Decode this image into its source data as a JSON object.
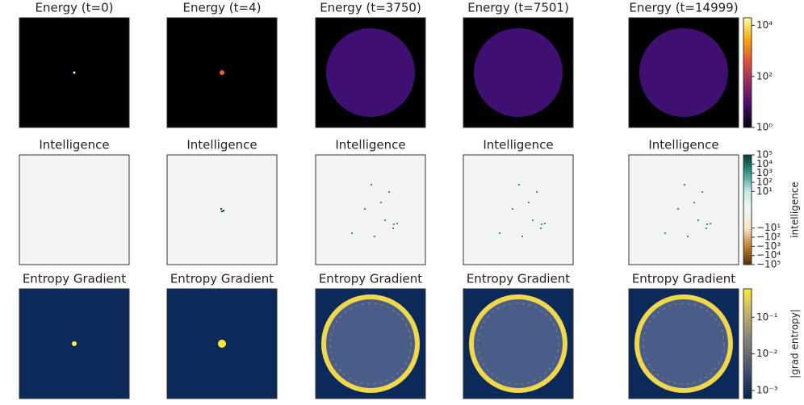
{
  "chart_data": [
    {
      "type": "heatmap",
      "titles": [
        "Energy (t=0)",
        "Energy (t=4)",
        "Energy (t=3750)",
        "Energy (t=7501)",
        "Energy (t=14999)"
      ],
      "colorbar": {
        "scale": "log",
        "lim": [
          1,
          20000
        ],
        "colors": [
          "#000004",
          "#420a68",
          "#932667",
          "#dd513a",
          "#fca50a",
          "#fcffa4"
        ],
        "ticks": [
          {
            "value": 1,
            "label": "10⁰"
          },
          {
            "value": 100,
            "label": "10²"
          },
          {
            "value": 10000,
            "label": "10⁴"
          }
        ]
      }
    },
    {
      "type": "heatmap",
      "titles": [
        "Intelligence",
        "Intelligence",
        "Intelligence",
        "Intelligence",
        "Intelligence"
      ],
      "colorbar": {
        "label": "intelligence",
        "scale": "symlog",
        "lim": [
          -100000,
          100000
        ],
        "colors": [
          "#543005",
          "#bf812d",
          "#f6e8c3",
          "#f5f5f5",
          "#c7eae5",
          "#35978f",
          "#003c30"
        ],
        "ticks": [
          {
            "value": 100000,
            "label": "10⁵"
          },
          {
            "value": 10000,
            "label": "10⁴"
          },
          {
            "value": 1000,
            "label": "10³"
          },
          {
            "value": 100,
            "label": "10²"
          },
          {
            "value": 10,
            "label": "10¹"
          },
          {
            "value": -10,
            "label": "−10¹"
          },
          {
            "value": -100,
            "label": "−10²"
          },
          {
            "value": -1000,
            "label": "−10³"
          },
          {
            "value": -10000,
            "label": "−10⁴"
          },
          {
            "value": -100000,
            "label": "−10⁵"
          }
        ]
      }
    },
    {
      "type": "heatmap",
      "titles": [
        "Entropy Gradient",
        "Entropy Gradient",
        "Entropy Gradient",
        "Entropy Gradient",
        "Entropy Gradient"
      ],
      "colorbar": {
        "label": "|grad entropy|",
        "scale": "log",
        "lim": [
          0.0006,
          0.6
        ],
        "colors": [
          "#00224e",
          "#35456c",
          "#666970",
          "#948e77",
          "#c8b866",
          "#fee838"
        ],
        "ticks": [
          {
            "value": 0.001,
            "label": "10⁻³"
          },
          {
            "value": 0.01,
            "label": "10⁻²"
          },
          {
            "value": 0.1,
            "label": "10⁻¹"
          }
        ]
      }
    }
  ]
}
